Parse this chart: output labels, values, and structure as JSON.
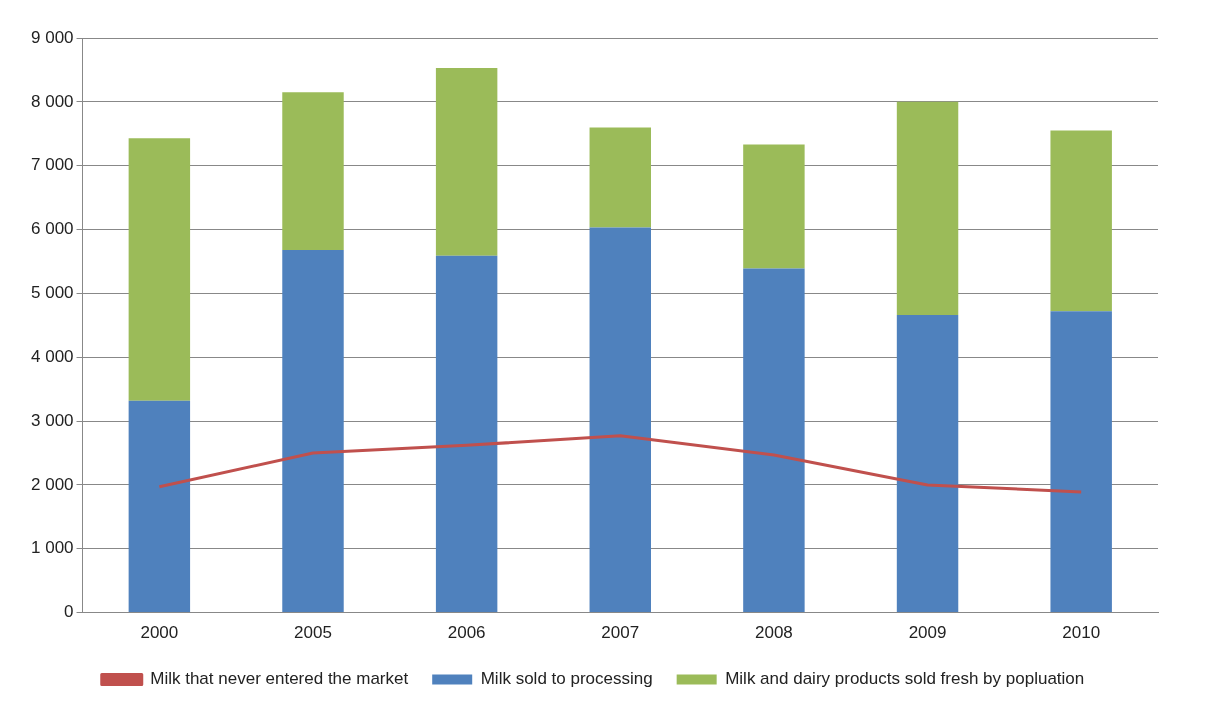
{
  "chart_data": {
    "type": "bar",
    "stacked": true,
    "categories": [
      "2000",
      "2005",
      "2006",
      "2007",
      "2008",
      "2009",
      "2010"
    ],
    "series": [
      {
        "name": "Milk sold to processing",
        "color": "#4f81bd",
        "values": [
          3320,
          5680,
          5590,
          6030,
          5390,
          4660,
          4720
        ]
      },
      {
        "name": "Milk and dairy products sold fresh by popluation",
        "color": "#9bbb59",
        "values": [
          4110,
          2470,
          2940,
          1570,
          1940,
          3340,
          2830
        ]
      },
      {
        "name": "Milk that never entered the market",
        "type": "line",
        "color": "#c0504d",
        "values": [
          1970,
          2500,
          2620,
          2770,
          2470,
          2000,
          1890
        ]
      }
    ],
    "ylim": [
      0,
      9000
    ],
    "yticks": [
      0,
      {
        "value": 1000,
        "label": "1 000"
      },
      {
        "value": 2000,
        "label": "2 000"
      },
      {
        "value": 3000,
        "label": "3 000"
      },
      {
        "value": 4000,
        "label": "4 000"
      },
      {
        "value": 5000,
        "label": "5 000"
      },
      {
        "value": 6000,
        "label": "6 000"
      },
      {
        "value": 7000,
        "label": "7 000"
      },
      {
        "value": 8000,
        "label": "8 000"
      },
      {
        "value": 9000,
        "label": "9 000"
      }
    ],
    "grid": "y",
    "legend": "bottom"
  }
}
